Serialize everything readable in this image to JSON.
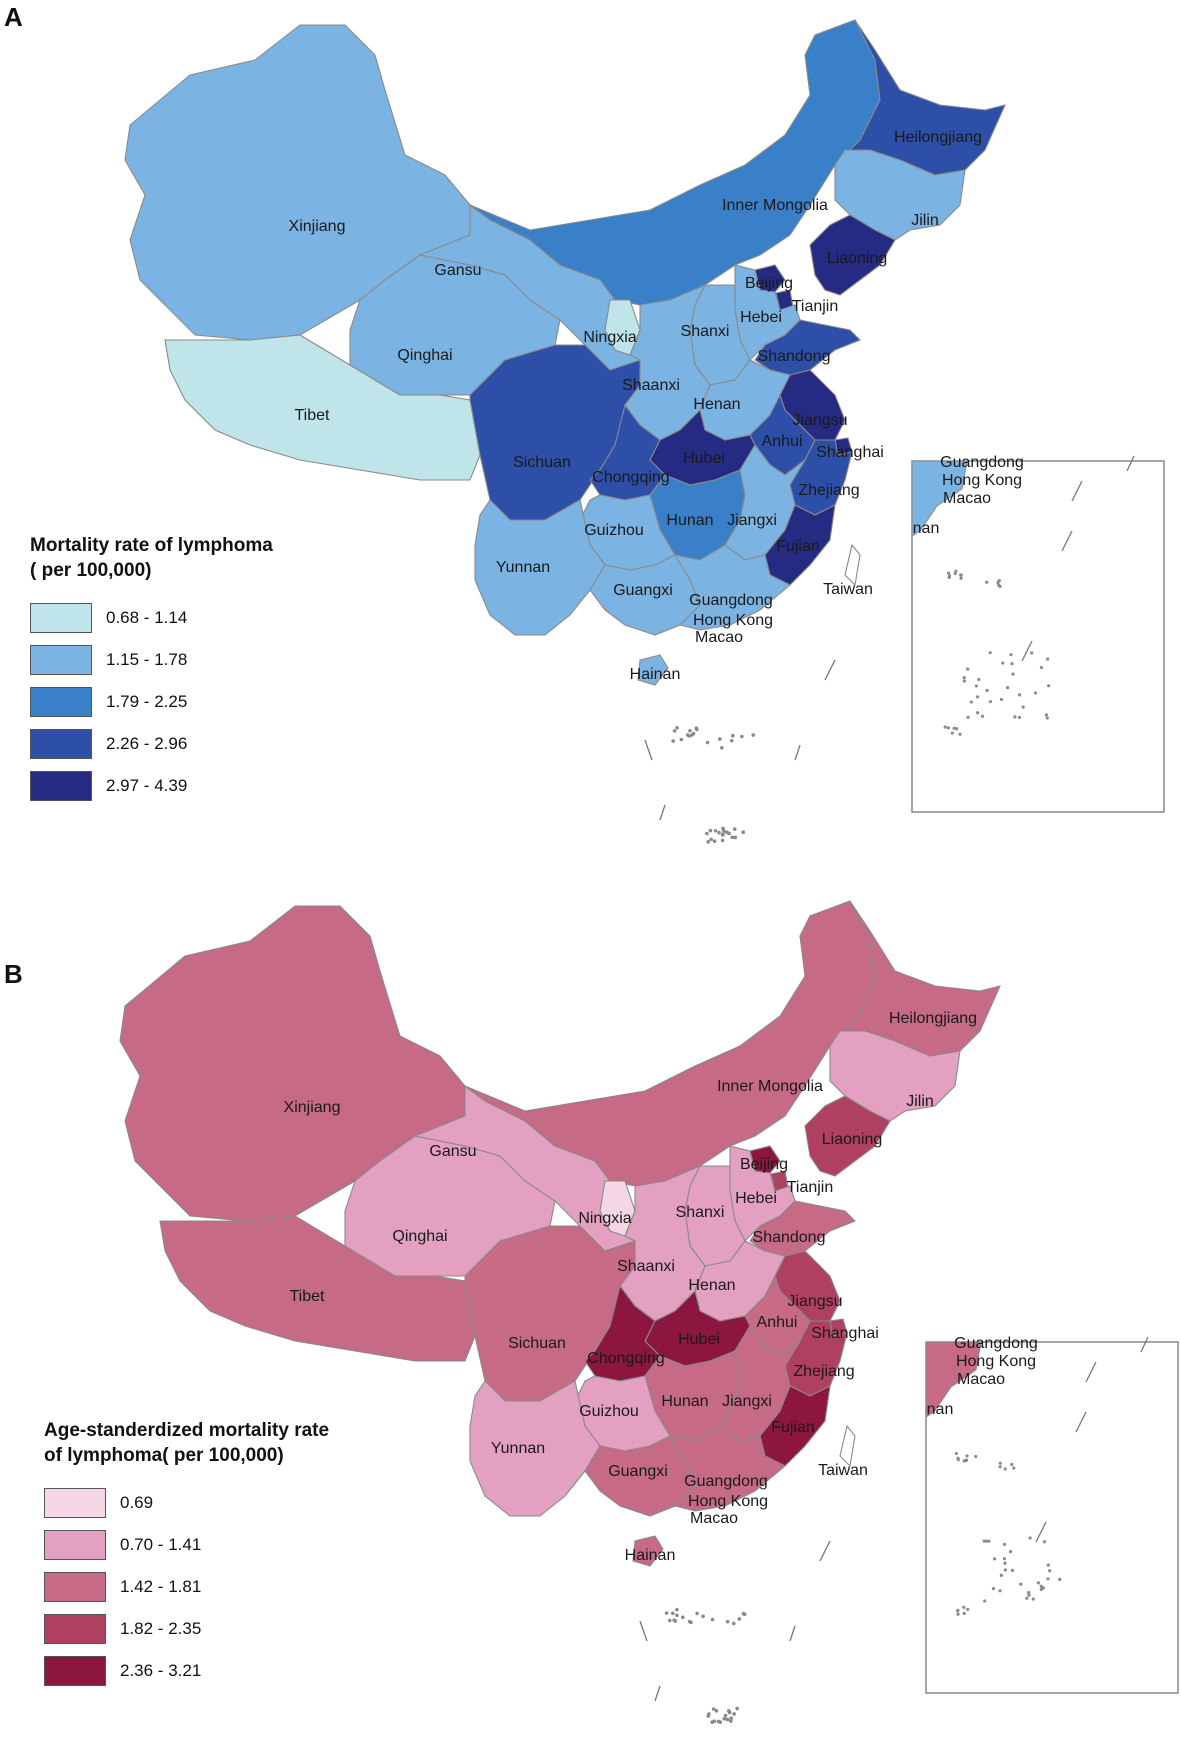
{
  "panel_a": {
    "letter": "A",
    "legend_title_line1": "Mortality rate of lymphoma",
    "legend_title_line2": "( per 100,000)",
    "legend": [
      {
        "label": "0.68 - 1.14",
        "color": "#bfe5ea"
      },
      {
        "label": "1.15 - 1.78",
        "color": "#7bb3e2"
      },
      {
        "label": "1.79 - 2.25",
        "color": "#3a80c8"
      },
      {
        "label": "2.26 - 2.96",
        "color": "#2d4fa8"
      },
      {
        "label": "2.97 - 4.39",
        "color": "#252a83"
      }
    ],
    "regions": {
      "Xinjiang": 1,
      "Tibet": 0,
      "Qinghai": 1,
      "Gansu": 1,
      "Inner Mongolia": 2,
      "Heilongjiang": 3,
      "Jilin": 1,
      "Liaoning": 4,
      "Beijing": 4,
      "Tianjin": 4,
      "Hebei": 1,
      "Shanxi": 1,
      "Ningxia": 0,
      "Shaanxi": 1,
      "Shandong": 3,
      "Henan": 1,
      "Jiangsu": 4,
      "Anhui": 3,
      "Shanghai": 4,
      "Hubei": 4,
      "Sichuan": 3,
      "Chongqing": 3,
      "Zhejiang": 3,
      "Hunan": 2,
      "Jiangxi": 1,
      "Fujian": 4,
      "Guizhou": 1,
      "Yunnan": 1,
      "Guangxi": 1,
      "Guangdong": 1,
      "Hainan": 1,
      "Taiwan": null,
      "Hong Kong": null,
      "Macao": null
    },
    "labels": {
      "Xinjiang": "Xinjiang",
      "Gansu": "Gansu",
      "Inner Mongolia": "Inner Mongolia",
      "Heilongjiang": "Heilongjiang",
      "Jilin": "Jilin",
      "Liaoning": "Liaoning",
      "Beijing": "Beijing",
      "Tianjin": "Tianjin",
      "Hebei": "Hebei",
      "Ningxia": "Ningxia",
      "Shanxi": "Shanxi",
      "Qinghai": "Qinghai",
      "Shandong": "Shandong",
      "Shaanxi": "Shaanxi",
      "Tibet": "Tibet",
      "Henan": "Henan",
      "Jiangsu": "Jiangsu",
      "Anhui": "Anhui",
      "Shanghai": "Shanghai",
      "Sichuan": "Sichuan",
      "Hubei": "Hubei",
      "Chongqing": "Chongqing",
      "Zhejiang": "Zhejiang",
      "Hunan": "Hunan",
      "Jiangxi": "Jiangxi",
      "Guizhou": "Guizhou",
      "Fujian": "Fujian",
      "Yunnan": "Yunnan",
      "Taiwan": "Taiwan",
      "Guangxi": "Guangxi",
      "Guangdong": "Guangdong",
      "Hong Kong": "Hong Kong",
      "Macao": "Macao",
      "Hainan": "Hainan"
    },
    "inset_labels": [
      "Guangdong",
      "Hong Kong",
      "Macao",
      "nan"
    ]
  },
  "panel_b": {
    "letter": "B",
    "legend_title_line1": "Age-standerdized mortality rate",
    "legend_title_line2": "of  lymphoma( per 100,000)",
    "legend": [
      {
        "label": "0.69",
        "color": "#f4d6e4"
      },
      {
        "label": "0.70 - 1.41",
        "color": "#e3a0c0"
      },
      {
        "label": "1.42 - 1.81",
        "color": "#c66a86"
      },
      {
        "label": "1.82 - 2.35",
        "color": "#b0405f"
      },
      {
        "label": "2.36 - 3.21",
        "color": "#8c1640"
      }
    ],
    "regions": {
      "Xinjiang": 2,
      "Tibet": 2,
      "Qinghai": 1,
      "Gansu": 1,
      "Inner Mongolia": 2,
      "Heilongjiang": 2,
      "Jilin": 1,
      "Liaoning": 3,
      "Beijing": 4,
      "Tianjin": 3,
      "Hebei": 1,
      "Shanxi": 1,
      "Ningxia": 0,
      "Shaanxi": 1,
      "Shandong": 2,
      "Henan": 1,
      "Jiangsu": 3,
      "Anhui": 2,
      "Shanghai": 3,
      "Hubei": 4,
      "Sichuan": 2,
      "Chongqing": 4,
      "Zhejiang": 3,
      "Hunan": 2,
      "Jiangxi": 2,
      "Fujian": 4,
      "Guizhou": 1,
      "Yunnan": 1,
      "Guangxi": 2,
      "Guangdong": 2,
      "Hainan": 2,
      "Taiwan": null,
      "Hong Kong": null,
      "Macao": null
    },
    "labels": {
      "Xinjiang": "Xinjiang",
      "Gansu": "Gansu",
      "Inner Mongolia": "Inner Mongolia",
      "Heilongjiang": "Heilongjiang",
      "Jilin": "Jilin",
      "Liaoning": "Liaoning",
      "Beijing": "Beijing",
      "Tianjin": "Tianjin",
      "Hebei": "Hebei",
      "Ningxia": "Ningxia",
      "Shanxi": "Shanxi",
      "Qinghai": "Qinghai",
      "Shandong": "Shandong",
      "Shaanxi": "Shaanxi",
      "Tibet": "Tibet",
      "Henan": "Henan",
      "Jiangsu": "Jiangsu",
      "Anhui": "Anhui",
      "Shanghai": "Shanghai",
      "Sichuan": "Sichuan",
      "Hubei": "Hubei",
      "Chongqing": "Chongqing",
      "Zhejiang": "Zhejiang",
      "Hunan": "Hunan",
      "Jiangxi": "Jiangxi",
      "Guizhou": "Guizhou",
      "Fujian": "Fujian",
      "Yunnan": "Yunnan",
      "Taiwan": "Taiwan",
      "Guangxi": "Guangxi",
      "Guangdong": "Guangdong",
      "Hong Kong": "Hong Kong",
      "Macao": "Macao",
      "Hainan": "Hainan"
    },
    "inset_labels": [
      "Guangdong",
      "Hong Kong",
      "Macao",
      "nan"
    ]
  },
  "colors": {
    "border": "#8a8a8a",
    "island_dots": "#8a8a8a",
    "inset_frame": "#888888",
    "no_data": "#ffffff"
  }
}
